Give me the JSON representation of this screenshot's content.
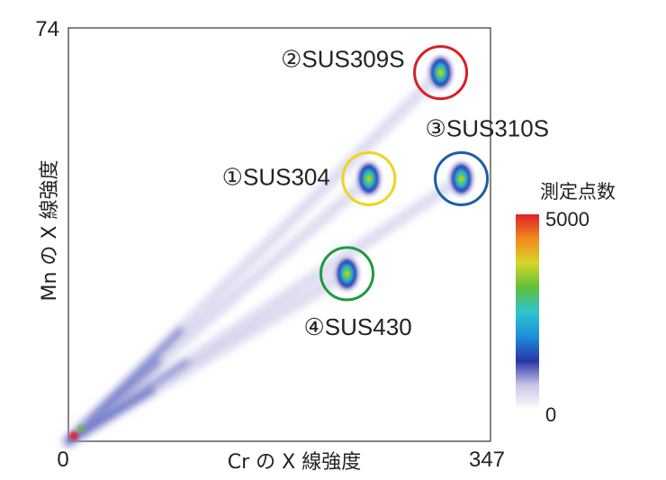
{
  "chart_data": {
    "type": "heatmap",
    "xlabel": "Cr の X 線強度",
    "ylabel": "Mn の X 線強度",
    "xlim": [
      0,
      347
    ],
    "ylim": [
      0,
      74
    ],
    "x_ticks": [
      "0",
      "347"
    ],
    "y_ticks": [
      "74"
    ],
    "colorbar": {
      "title": "測定点数",
      "min": 0,
      "max": 5000,
      "min_label": "0",
      "max_label": "5000",
      "colors": [
        "#ffffff",
        "#c9c6e6",
        "#2a35a8",
        "#1c8fd8",
        "#2ec4cf",
        "#5fbf3c",
        "#d7d62a",
        "#f08a1e",
        "#e0202a"
      ]
    },
    "grades": [
      {
        "label": "①SUS304",
        "cr": 247,
        "mn": 47,
        "circle_color": "#f2d21c"
      },
      {
        "label": "②SUS309S",
        "cr": 306,
        "mn": 66,
        "circle_color": "#d61f26"
      },
      {
        "label": "③SUS310S",
        "cr": 323,
        "mn": 47,
        "circle_color": "#1a5fa8"
      },
      {
        "label": "④SUS430",
        "cr": 229,
        "mn": 30,
        "circle_color": "#1f9a3c"
      }
    ]
  }
}
